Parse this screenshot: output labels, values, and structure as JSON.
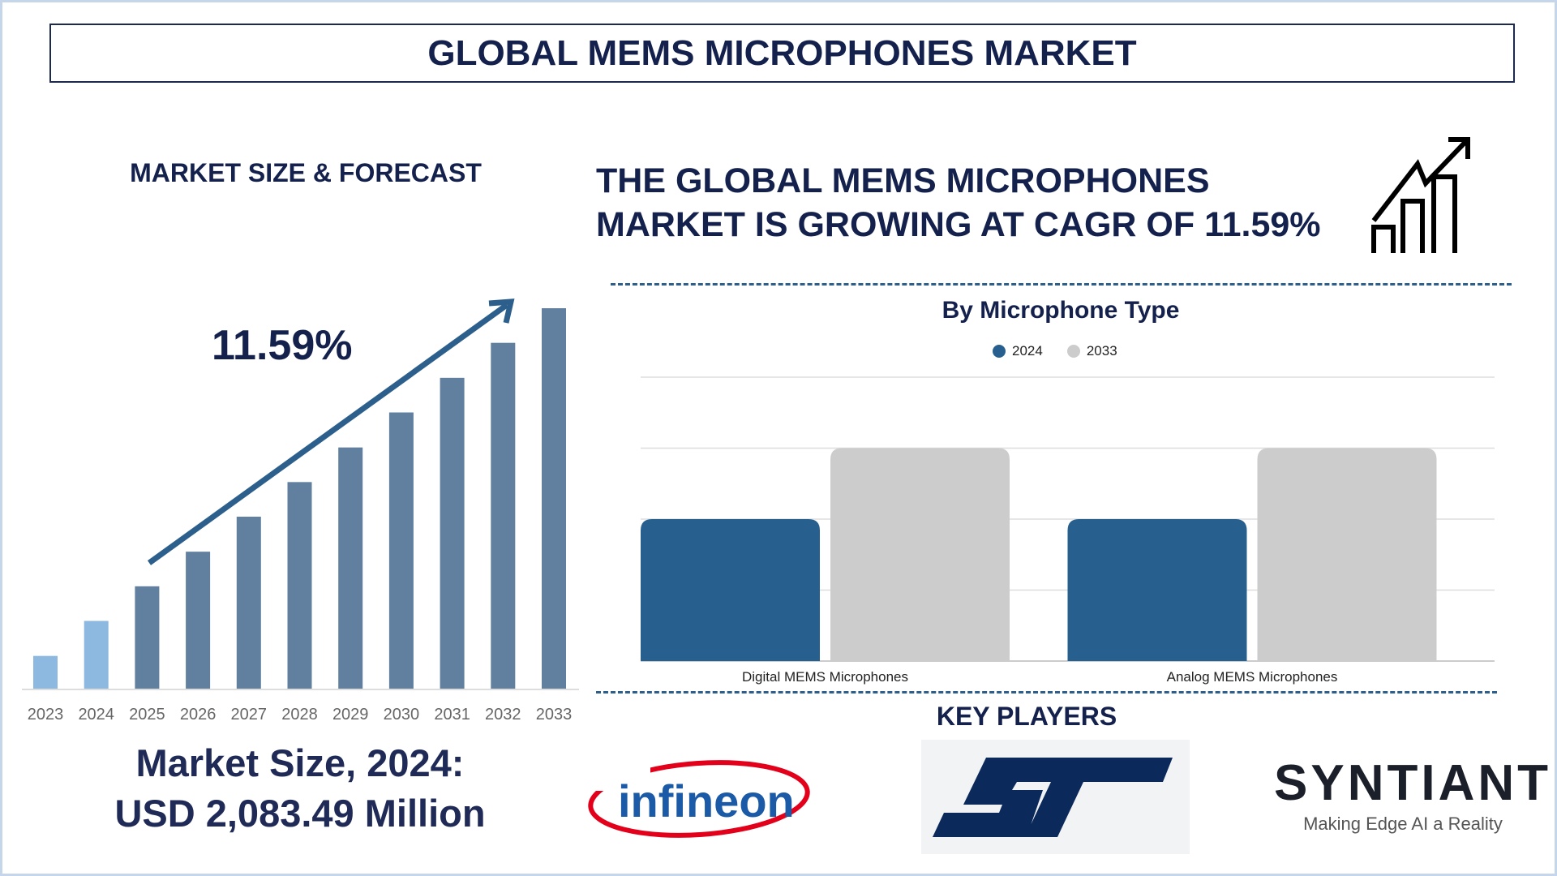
{
  "title": "GLOBAL MEMS MICROPHONES MARKET",
  "left": {
    "heading": "MARKET SIZE & FORECAST",
    "cagr_label": "11.59%",
    "market_size_line1": "Market Size, 2024:",
    "market_size_line2": "USD 2,083.49 Million"
  },
  "headline": {
    "line1": "THE GLOBAL MEMS MICROPHONES",
    "line2": "MARKET IS GROWING AT CAGR OF 11.59%",
    "icon": "growth-chart-icon"
  },
  "key_players": {
    "heading": "KEY PLAYERS",
    "logos": [
      "infineon",
      "ST",
      "SYNTIANT"
    ],
    "syntiant_tagline": "Making Edge AI a Reality"
  },
  "colors": {
    "navy": "#14214d",
    "bar_hist": "#8db8e0",
    "bar_forecast": "#61809f",
    "series_2024": "#27608f",
    "series_2033": "#cccccc"
  },
  "chart_data": [
    {
      "type": "bar",
      "categories": [
        "2023",
        "2024",
        "2025",
        "2026",
        "2027",
        "2028",
        "2029",
        "2030",
        "2031",
        "2032",
        "2033"
      ],
      "values": [
        8.6,
        17.8,
        26.9,
        36.0,
        45.2,
        54.3,
        63.4,
        72.6,
        81.7,
        90.9,
        100
      ],
      "unit": "relative height (% of 2033), no axis printed",
      "highlighted_historical": [
        "2023",
        "2024"
      ],
      "annotation": "11.59%",
      "grid": false
    },
    {
      "type": "bar",
      "title": "By Microphone Type",
      "categories": [
        "Digital MEMS Microphones",
        "Analog MEMS Microphones"
      ],
      "series": [
        {
          "name": "2024",
          "values": [
            2,
            2
          ]
        },
        {
          "name": "2033",
          "values": [
            3,
            3
          ]
        }
      ],
      "ylim": [
        0,
        4
      ],
      "grid": true,
      "legend": "top-center"
    }
  ]
}
